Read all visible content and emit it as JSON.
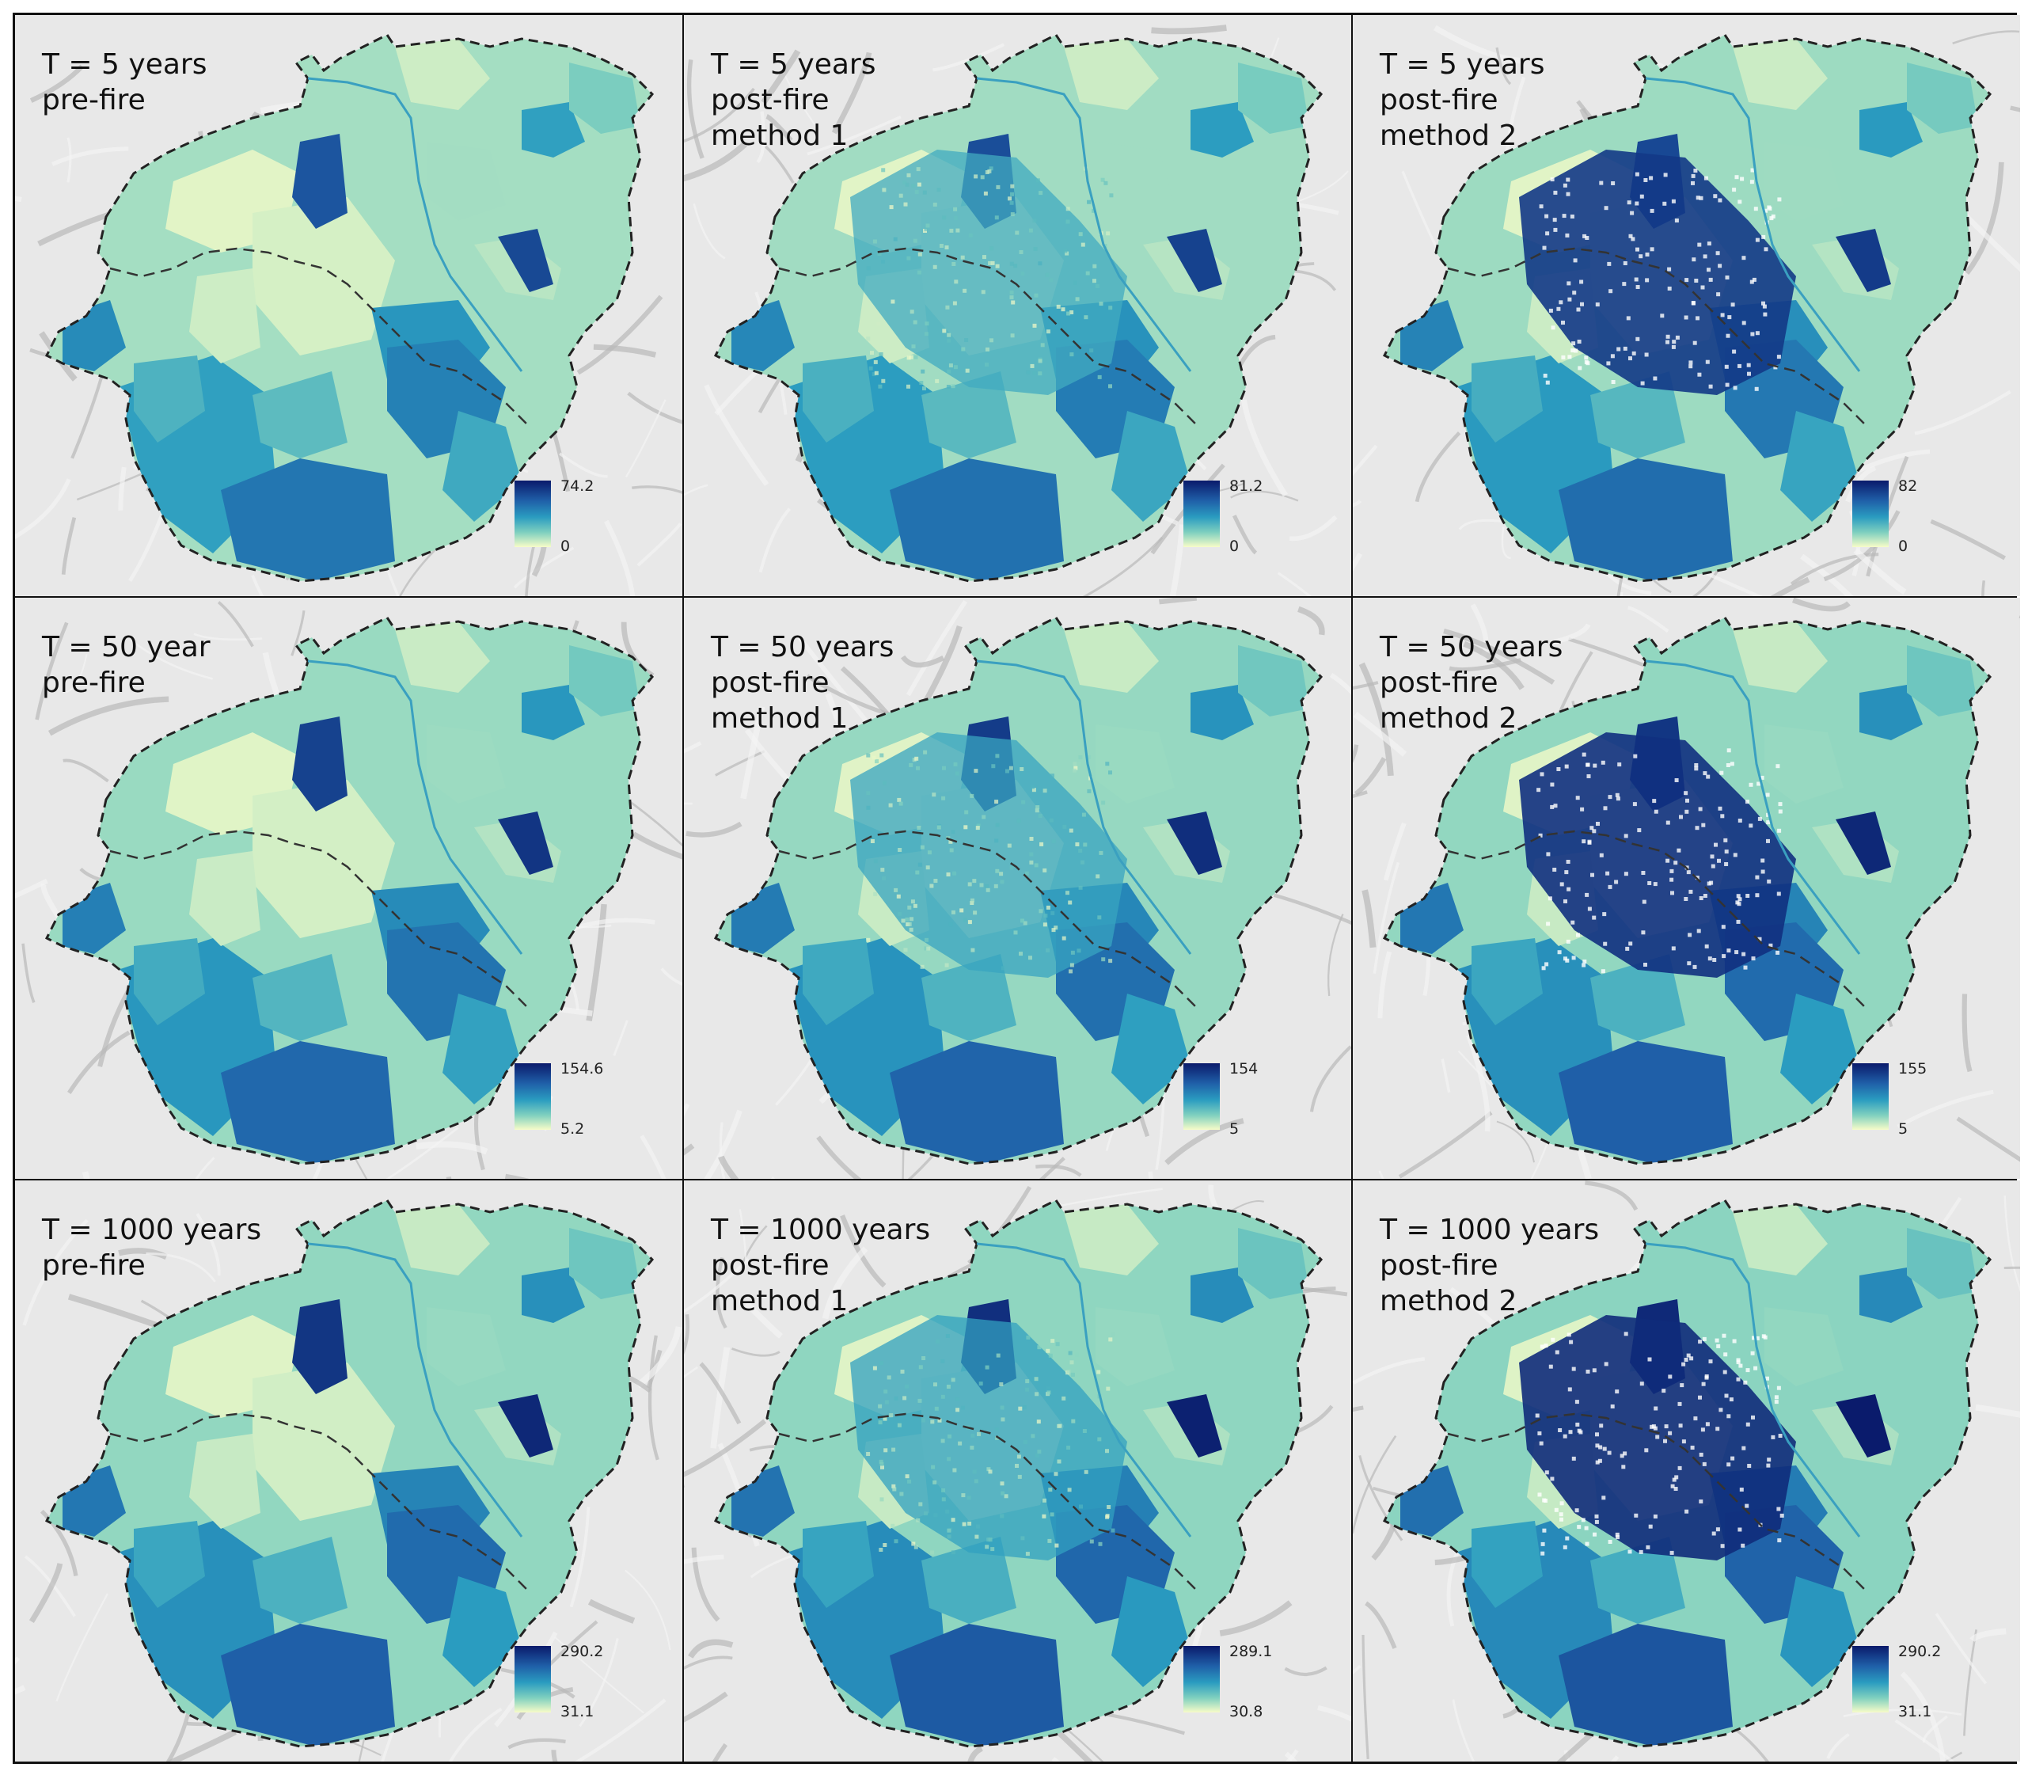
{
  "panels": [
    {
      "title": [
        "T = 5 years",
        "pre-fire"
      ],
      "legend_max": "74.2",
      "legend_min": "0",
      "intensity": 0.35,
      "burn": 0
    },
    {
      "title": [
        "T = 5 years",
        "post-fire",
        "method 1"
      ],
      "legend_max": "81.2",
      "legend_min": "0",
      "intensity": 0.4,
      "burn": 1
    },
    {
      "title": [
        "T = 5 years",
        "post-fire",
        "method 2"
      ],
      "legend_max": "82",
      "legend_min": "0",
      "intensity": 0.45,
      "burn": 2
    },
    {
      "title": [
        "T = 50 year",
        "pre-fire"
      ],
      "legend_max": "154.6",
      "legend_min": "5.2",
      "intensity": 0.5,
      "burn": 0
    },
    {
      "title": [
        "T = 50 years",
        "post-fire",
        "method 1"
      ],
      "legend_max": "154",
      "legend_min": "5",
      "intensity": 0.55,
      "burn": 1
    },
    {
      "title": [
        "T = 50 years",
        "post-fire",
        "method 2"
      ],
      "legend_max": "155",
      "legend_min": "5",
      "intensity": 0.6,
      "burn": 2
    },
    {
      "title": [
        "T = 1000 years",
        "pre-fire"
      ],
      "legend_max": "290.2",
      "legend_min": "31.1",
      "intensity": 0.6,
      "burn": 0
    },
    {
      "title": [
        "T = 1000 years",
        "post-fire",
        "method 1"
      ],
      "legend_max": "289.1",
      "legend_min": "30.8",
      "intensity": 0.65,
      "burn": 1
    },
    {
      "title": [
        "T = 1000 years",
        "post-fire",
        "method 2"
      ],
      "legend_max": "290.2",
      "legend_min": "31.1",
      "intensity": 0.7,
      "burn": 2
    }
  ],
  "colors": {
    "ramp_high": "#0a1a6b",
    "ramp_mid_high": "#1f5fa8",
    "ramp_mid": "#2a9cc0",
    "ramp_mid_low": "#7fd0bf",
    "ramp_low": "#f7fcc8",
    "hillshade": "#e6e6e6",
    "boundary": "#222222"
  }
}
